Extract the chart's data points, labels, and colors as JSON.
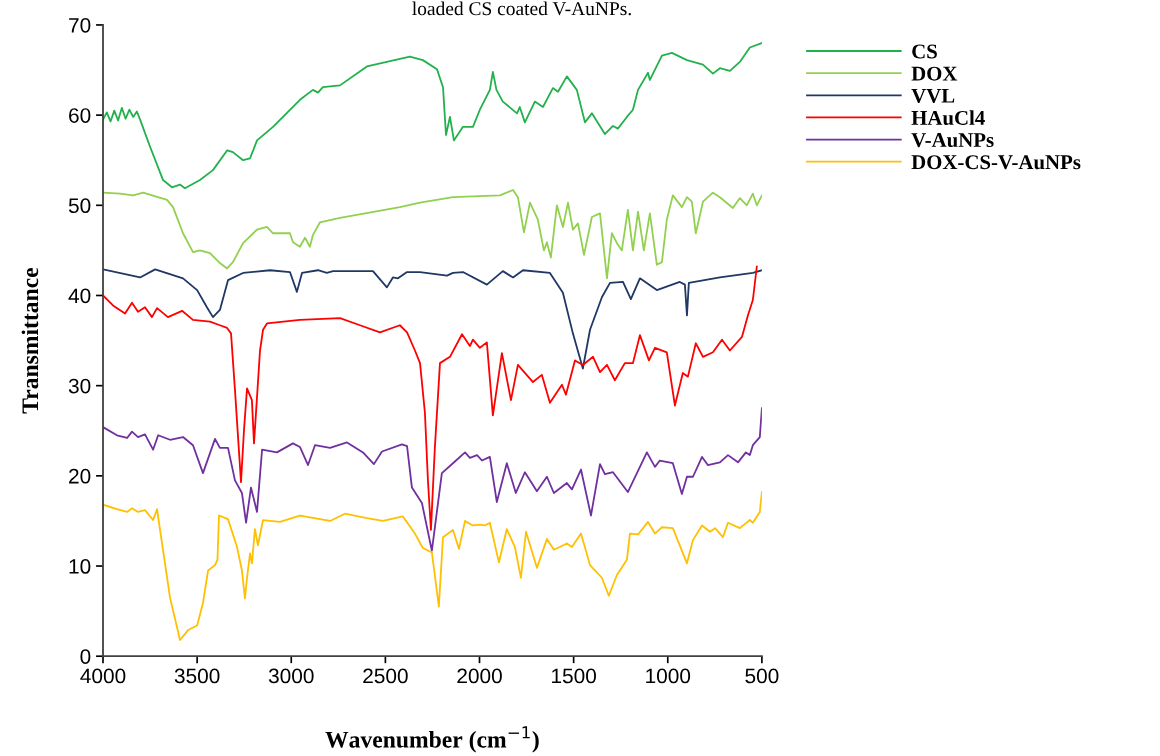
{
  "chart_data": {
    "type": "line",
    "xlabel": "Wavenumber (cm$^{−1}$)",
    "ylabel": "Transmittance",
    "annotations": [
      "loaded CS coated V-AuNPs."
    ],
    "xlim": [
      4000,
      500
    ],
    "xticks": [
      4000,
      3500,
      3000,
      2500,
      2000,
      1500,
      1000,
      500
    ],
    "ylim": [
      0,
      70
    ],
    "yticks": [
      0,
      10,
      20,
      30,
      40,
      50,
      60,
      70
    ],
    "grid": false,
    "legend": "right",
    "marker": "none",
    "line_style": "solid",
    "series": [
      {
        "name": "CS",
        "color": "#22b14c",
        "x": [
          4000,
          3980,
          3960,
          3940,
          3920,
          3900,
          3880,
          3860,
          3840,
          3820,
          3803,
          3750,
          3681,
          3634,
          3591,
          3565,
          3485,
          3416,
          3340,
          3310,
          3256,
          3219,
          3182,
          3097,
          2954,
          2885,
          2858,
          2832,
          2741,
          2598,
          2370,
          2301,
          2226,
          2194,
          2178,
          2157,
          2136,
          2088,
          2035,
          1998,
          1945,
          1929,
          1910,
          1876,
          1801,
          1786,
          1759,
          1706,
          1663,
          1610,
          1583,
          1536,
          1483,
          1440,
          1403,
          1334,
          1291,
          1265,
          1217,
          1185,
          1158,
          1105,
          1095,
          1031,
          978,
          898,
          813,
          760,
          723,
          670,
          617,
          564,
          500
        ],
        "values": [
          59.5,
          60.3,
          59.3,
          60.5,
          59.4,
          60.8,
          59.6,
          60.6,
          59.8,
          60.4,
          59.5,
          56.5,
          52.8,
          52.0,
          52.3,
          51.9,
          52.8,
          53.9,
          56.1,
          55.9,
          55.0,
          55.2,
          57.2,
          58.7,
          61.7,
          62.8,
          62.5,
          63.1,
          63.3,
          65.4,
          66.5,
          66.1,
          65.1,
          63.1,
          57.8,
          59.8,
          57.2,
          58.7,
          58.7,
          60.6,
          62.8,
          64.8,
          62.8,
          61.5,
          60.2,
          60.9,
          59.2,
          61.5,
          60.9,
          63.0,
          62.6,
          64.3,
          62.8,
          59.2,
          60.2,
          57.9,
          58.8,
          58.5,
          59.8,
          60.6,
          62.8,
          64.7,
          63.9,
          66.6,
          66.9,
          66.1,
          65.6,
          64.6,
          65.2,
          64.9,
          65.9,
          67.5,
          68.0
        ]
      },
      {
        "name": "DOX",
        "color": "#92d050",
        "x": [
          4000,
          3910,
          3840,
          3787,
          3660,
          3628,
          3575,
          3522,
          3485,
          3432,
          3379,
          3341,
          3310,
          3256,
          3182,
          3129,
          3097,
          3007,
          2991,
          2954,
          2927,
          2901,
          2885,
          2848,
          2741,
          2423,
          2316,
          2141,
          1892,
          1822,
          1796,
          1764,
          1732,
          1690,
          1658,
          1642,
          1621,
          1589,
          1557,
          1530,
          1504,
          1477,
          1445,
          1403,
          1360,
          1323,
          1297,
          1270,
          1244,
          1212,
          1185,
          1158,
          1127,
          1095,
          1058,
          1031,
          1005,
          973,
          925,
          898,
          872,
          851,
          813,
          760,
          723,
          654,
          617,
          580,
          548,
          527,
          500
        ],
        "values": [
          51.4,
          51.3,
          51.1,
          51.4,
          50.6,
          49.8,
          46.9,
          44.8,
          45.0,
          44.7,
          43.6,
          43.0,
          43.7,
          45.8,
          47.3,
          47.6,
          46.9,
          46.9,
          45.9,
          45.4,
          46.4,
          45.4,
          46.7,
          48.1,
          48.6,
          49.8,
          50.3,
          50.9,
          51.1,
          51.7,
          50.9,
          47.0,
          50.3,
          48.4,
          45.0,
          45.9,
          44.2,
          50.0,
          47.6,
          50.3,
          47.3,
          48.0,
          44.5,
          48.7,
          49.1,
          41.9,
          46.9,
          45.8,
          45.0,
          49.5,
          45.0,
          49.3,
          45.0,
          49.1,
          43.4,
          43.7,
          48.4,
          51.1,
          49.8,
          50.9,
          50.4,
          46.9,
          50.4,
          51.4,
          50.9,
          49.7,
          50.8,
          50.0,
          51.3,
          50.0,
          51.1
        ]
      },
      {
        "name": "VVL",
        "color": "#1f3864",
        "x": [
          4000,
          3803,
          3723,
          3575,
          3500,
          3448,
          3416,
          3379,
          3336,
          3256,
          3113,
          3007,
          2970,
          2943,
          2858,
          2811,
          2778,
          2566,
          2492,
          2460,
          2433,
          2385,
          2316,
          2173,
          2141,
          2088,
          1961,
          1876,
          1822,
          1769,
          1626,
          1557,
          1504,
          1451,
          1413,
          1350,
          1307,
          1238,
          1196,
          1148,
          1058,
          936,
          909,
          898,
          888,
          723,
          548,
          500
        ],
        "values": [
          42.9,
          42.0,
          42.9,
          41.9,
          40.6,
          38.7,
          37.6,
          38.4,
          41.7,
          42.5,
          42.8,
          42.6,
          40.4,
          42.5,
          42.8,
          42.5,
          42.7,
          42.7,
          40.9,
          42.0,
          41.9,
          42.6,
          42.6,
          42.2,
          42.5,
          42.6,
          41.2,
          42.7,
          42.0,
          42.8,
          42.5,
          40.3,
          35.8,
          31.9,
          36.2,
          39.8,
          41.4,
          41.5,
          39.6,
          41.9,
          40.6,
          41.5,
          41.2,
          37.8,
          41.4,
          42.0,
          42.5,
          42.8
        ]
      },
      {
        "name": "HAuCl4",
        "color": "#ff0000",
        "x": [
          4000,
          3947,
          3883,
          3846,
          3814,
          3777,
          3740,
          3713,
          3655,
          3580,
          3522,
          3432,
          3379,
          3341,
          3320,
          3299,
          3267,
          3251,
          3235,
          3209,
          3198,
          3182,
          3166,
          3150,
          3129,
          2954,
          2741,
          2635,
          2529,
          2423,
          2385,
          2343,
          2316,
          2290,
          2274,
          2258,
          2237,
          2210,
          2157,
          2093,
          2051,
          2035,
          1998,
          1961,
          1929,
          1881,
          1833,
          1796,
          1716,
          1669,
          1626,
          1562,
          1541,
          1493,
          1451,
          1397,
          1360,
          1323,
          1281,
          1228,
          1185,
          1148,
          1100,
          1068,
          1005,
          962,
          920,
          893,
          851,
          813,
          760,
          712,
          670,
          606,
          574,
          548,
          527
        ],
        "values": [
          40.0,
          38.9,
          38.0,
          39.2,
          38.2,
          38.7,
          37.6,
          38.6,
          37.6,
          38.3,
          37.3,
          37.1,
          36.7,
          36.4,
          35.8,
          29.5,
          19.3,
          25.1,
          29.7,
          28.4,
          23.6,
          28.7,
          33.9,
          36.2,
          36.9,
          37.3,
          37.5,
          36.7,
          35.9,
          36.7,
          35.9,
          33.9,
          32.5,
          27.0,
          19.5,
          14.0,
          23.2,
          32.5,
          33.2,
          35.7,
          34.4,
          35.1,
          34.2,
          34.8,
          26.7,
          33.6,
          28.4,
          32.3,
          30.4,
          31.2,
          28.1,
          30.1,
          29.0,
          32.8,
          32.3,
          33.2,
          31.5,
          32.3,
          30.6,
          32.5,
          32.5,
          35.6,
          32.8,
          34.2,
          33.7,
          27.8,
          31.4,
          31.0,
          34.7,
          33.2,
          33.7,
          35.1,
          33.9,
          35.4,
          37.8,
          39.5,
          43.2
        ]
      },
      {
        "name": "V-AuNPs",
        "color": "#7030a0",
        "x": [
          4000,
          3926,
          3872,
          3846,
          3814,
          3777,
          3734,
          3707,
          3644,
          3575,
          3522,
          3469,
          3405,
          3379,
          3336,
          3299,
          3262,
          3240,
          3214,
          3182,
          3155,
          3076,
          2991,
          2954,
          2911,
          2874,
          2794,
          2704,
          2619,
          2561,
          2518,
          2412,
          2385,
          2359,
          2306,
          2253,
          2200,
          2141,
          2077,
          2051,
          2013,
          1987,
          1945,
          1908,
          1855,
          1807,
          1759,
          1695,
          1642,
          1605,
          1536,
          1509,
          1461,
          1408,
          1360,
          1334,
          1291,
          1212,
          1111,
          1068,
          1042,
          973,
          925,
          898,
          866,
          818,
          787,
          723,
          680,
          627,
          585,
          564,
          548,
          511,
          500
        ],
        "values": [
          25.4,
          24.5,
          24.2,
          24.9,
          24.3,
          24.6,
          22.9,
          24.5,
          24.0,
          24.3,
          23.4,
          20.3,
          24.1,
          23.1,
          23.1,
          19.5,
          18.1,
          14.8,
          18.7,
          16.0,
          22.9,
          22.6,
          23.6,
          23.2,
          21.2,
          23.4,
          23.1,
          23.7,
          22.6,
          21.3,
          22.7,
          23.5,
          23.3,
          18.7,
          17.0,
          11.7,
          20.3,
          21.4,
          22.6,
          22.0,
          22.3,
          21.7,
          22.1,
          17.1,
          21.4,
          18.1,
          20.4,
          18.3,
          19.9,
          18.1,
          19.2,
          18.5,
          20.7,
          15.6,
          21.3,
          20.2,
          20.4,
          18.2,
          22.6,
          21.0,
          21.7,
          21.4,
          18.0,
          19.9,
          19.9,
          22.1,
          21.2,
          21.5,
          22.3,
          21.5,
          22.6,
          22.3,
          23.4,
          24.3,
          27.5
        ]
      },
      {
        "name": "DOX-CS-V-AuNPs",
        "color": "#ffc000",
        "x": [
          4000,
          3926,
          3872,
          3846,
          3814,
          3777,
          3734,
          3713,
          3697,
          3644,
          3591,
          3548,
          3500,
          3469,
          3442,
          3405,
          3392,
          3384,
          3336,
          3288,
          3262,
          3246,
          3235,
          3219,
          3209,
          3193,
          3177,
          3150,
          3060,
          2954,
          2794,
          2715,
          2598,
          2513,
          2407,
          2343,
          2301,
          2253,
          2216,
          2194,
          2141,
          2109,
          2077,
          2035,
          1998,
          1971,
          1945,
          1897,
          1855,
          1812,
          1780,
          1753,
          1695,
          1642,
          1605,
          1536,
          1509,
          1461,
          1413,
          1350,
          1313,
          1270,
          1217,
          1201,
          1158,
          1105,
          1068,
          1031,
          973,
          898,
          866,
          818,
          776,
          749,
          707,
          680,
          617,
          564,
          548,
          511,
          500
        ],
        "values": [
          16.8,
          16.3,
          16.0,
          16.4,
          16.0,
          16.2,
          15.1,
          16.3,
          14.0,
          6.5,
          1.8,
          2.9,
          3.4,
          5.9,
          9.5,
          10.1,
          10.7,
          15.6,
          15.2,
          12.1,
          9.5,
          6.4,
          8.7,
          11.4,
          10.3,
          14.1,
          12.3,
          15.1,
          14.9,
          15.6,
          15.0,
          15.8,
          15.3,
          15.0,
          15.5,
          13.6,
          12.0,
          11.5,
          5.5,
          13.2,
          14.0,
          11.9,
          15.0,
          14.5,
          14.6,
          14.5,
          14.8,
          10.4,
          14.1,
          12.1,
          8.7,
          13.8,
          9.8,
          13.0,
          11.8,
          12.5,
          12.1,
          13.6,
          10.1,
          8.7,
          6.7,
          9.0,
          10.7,
          13.6,
          13.5,
          14.9,
          13.6,
          14.3,
          14.2,
          10.3,
          12.9,
          14.5,
          13.8,
          14.2,
          13.2,
          14.8,
          14.2,
          15.1,
          14.8,
          16.0,
          18.2
        ]
      }
    ]
  }
}
